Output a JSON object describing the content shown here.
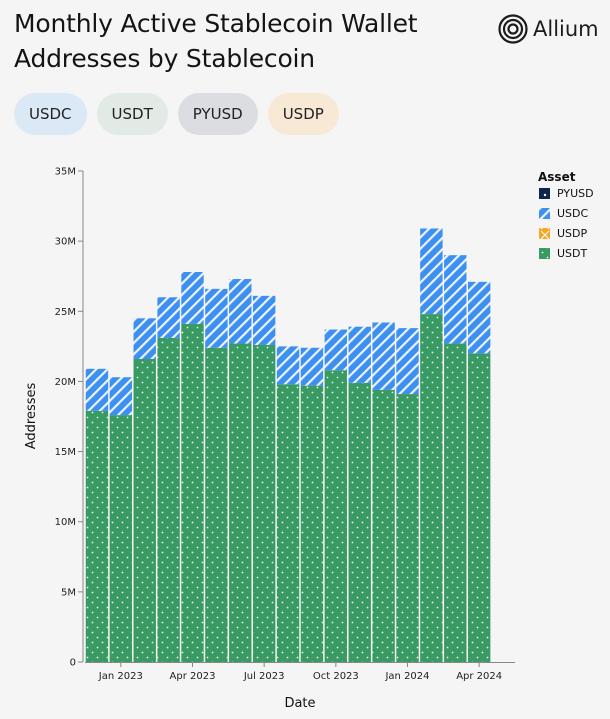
{
  "header": {
    "title_line1": "Monthly Active Stablecoin Wallet",
    "title_line2": "Addresses by Stablecoin",
    "brand_name": "Allium",
    "brand_icon": "concentric-circles-logo-icon"
  },
  "chips": [
    {
      "label": "USDC",
      "color": "#dbe9f6"
    },
    {
      "label": "USDT",
      "color": "#e1eae4"
    },
    {
      "label": "PYUSD",
      "color": "#dcdde2"
    },
    {
      "label": "USDP",
      "color": "#f8e9d7"
    }
  ],
  "chart_data": {
    "type": "bar",
    "stacked": true,
    "xlabel": "Date",
    "ylabel": "Addresses",
    "ylim": [
      0,
      35000000
    ],
    "yticks": [
      0,
      5000000,
      10000000,
      15000000,
      20000000,
      25000000,
      30000000,
      35000000
    ],
    "ytick_labels": [
      "0",
      "5M",
      "10M",
      "15M",
      "20M",
      "25M",
      "30M",
      "35M"
    ],
    "categories": [
      "2022-12",
      "2023-01",
      "2023-02",
      "2023-03",
      "2023-04",
      "2023-05",
      "2023-06",
      "2023-07",
      "2023-08",
      "2023-09",
      "2023-10",
      "2023-11",
      "2023-12",
      "2024-01",
      "2024-02",
      "2024-03",
      "2024-04",
      "2024-05"
    ],
    "xtick_labels": [
      {
        "category": "2023-01",
        "label": "Jan 2023"
      },
      {
        "category": "2023-04",
        "label": "Apr 2023"
      },
      {
        "category": "2023-07",
        "label": "Jul 2023"
      },
      {
        "category": "2023-10",
        "label": "Oct 2023"
      },
      {
        "category": "2024-01",
        "label": "Jan 2024"
      },
      {
        "category": "2024-04",
        "label": "Apr 2024"
      }
    ],
    "series": [
      {
        "name": "USDT",
        "color": "#3a9a63",
        "pattern": "dots",
        "values": [
          17900000,
          17600000,
          21600000,
          23100000,
          24100000,
          22400000,
          22700000,
          22600000,
          19800000,
          19700000,
          20800000,
          19900000,
          19400000,
          19100000,
          24800000,
          22700000,
          22000000,
          0
        ]
      },
      {
        "name": "USDP",
        "color": "#f5a623",
        "pattern": "cross",
        "values": [
          0,
          0,
          0,
          0,
          0,
          0,
          0,
          0,
          0,
          0,
          0,
          0,
          0,
          0,
          0,
          0,
          0,
          0
        ]
      },
      {
        "name": "USDC",
        "color": "#3d8ff0",
        "pattern": "stripes",
        "values": [
          3000000,
          2700000,
          2900000,
          2900000,
          3700000,
          4200000,
          4600000,
          3500000,
          2700000,
          2700000,
          2900000,
          4000000,
          4800000,
          4700000,
          6100000,
          6300000,
          5100000,
          0
        ]
      },
      {
        "name": "PYUSD",
        "color": "#10254b",
        "pattern": "solid-dot",
        "values": [
          0,
          0,
          0,
          0,
          0,
          0,
          0,
          0,
          0,
          0,
          0,
          0,
          0,
          0,
          0,
          0,
          0,
          0
        ]
      }
    ],
    "legend": {
      "title": "Asset",
      "position": "right",
      "order": [
        "PYUSD",
        "USDC",
        "USDP",
        "USDT"
      ]
    },
    "grid": false
  }
}
